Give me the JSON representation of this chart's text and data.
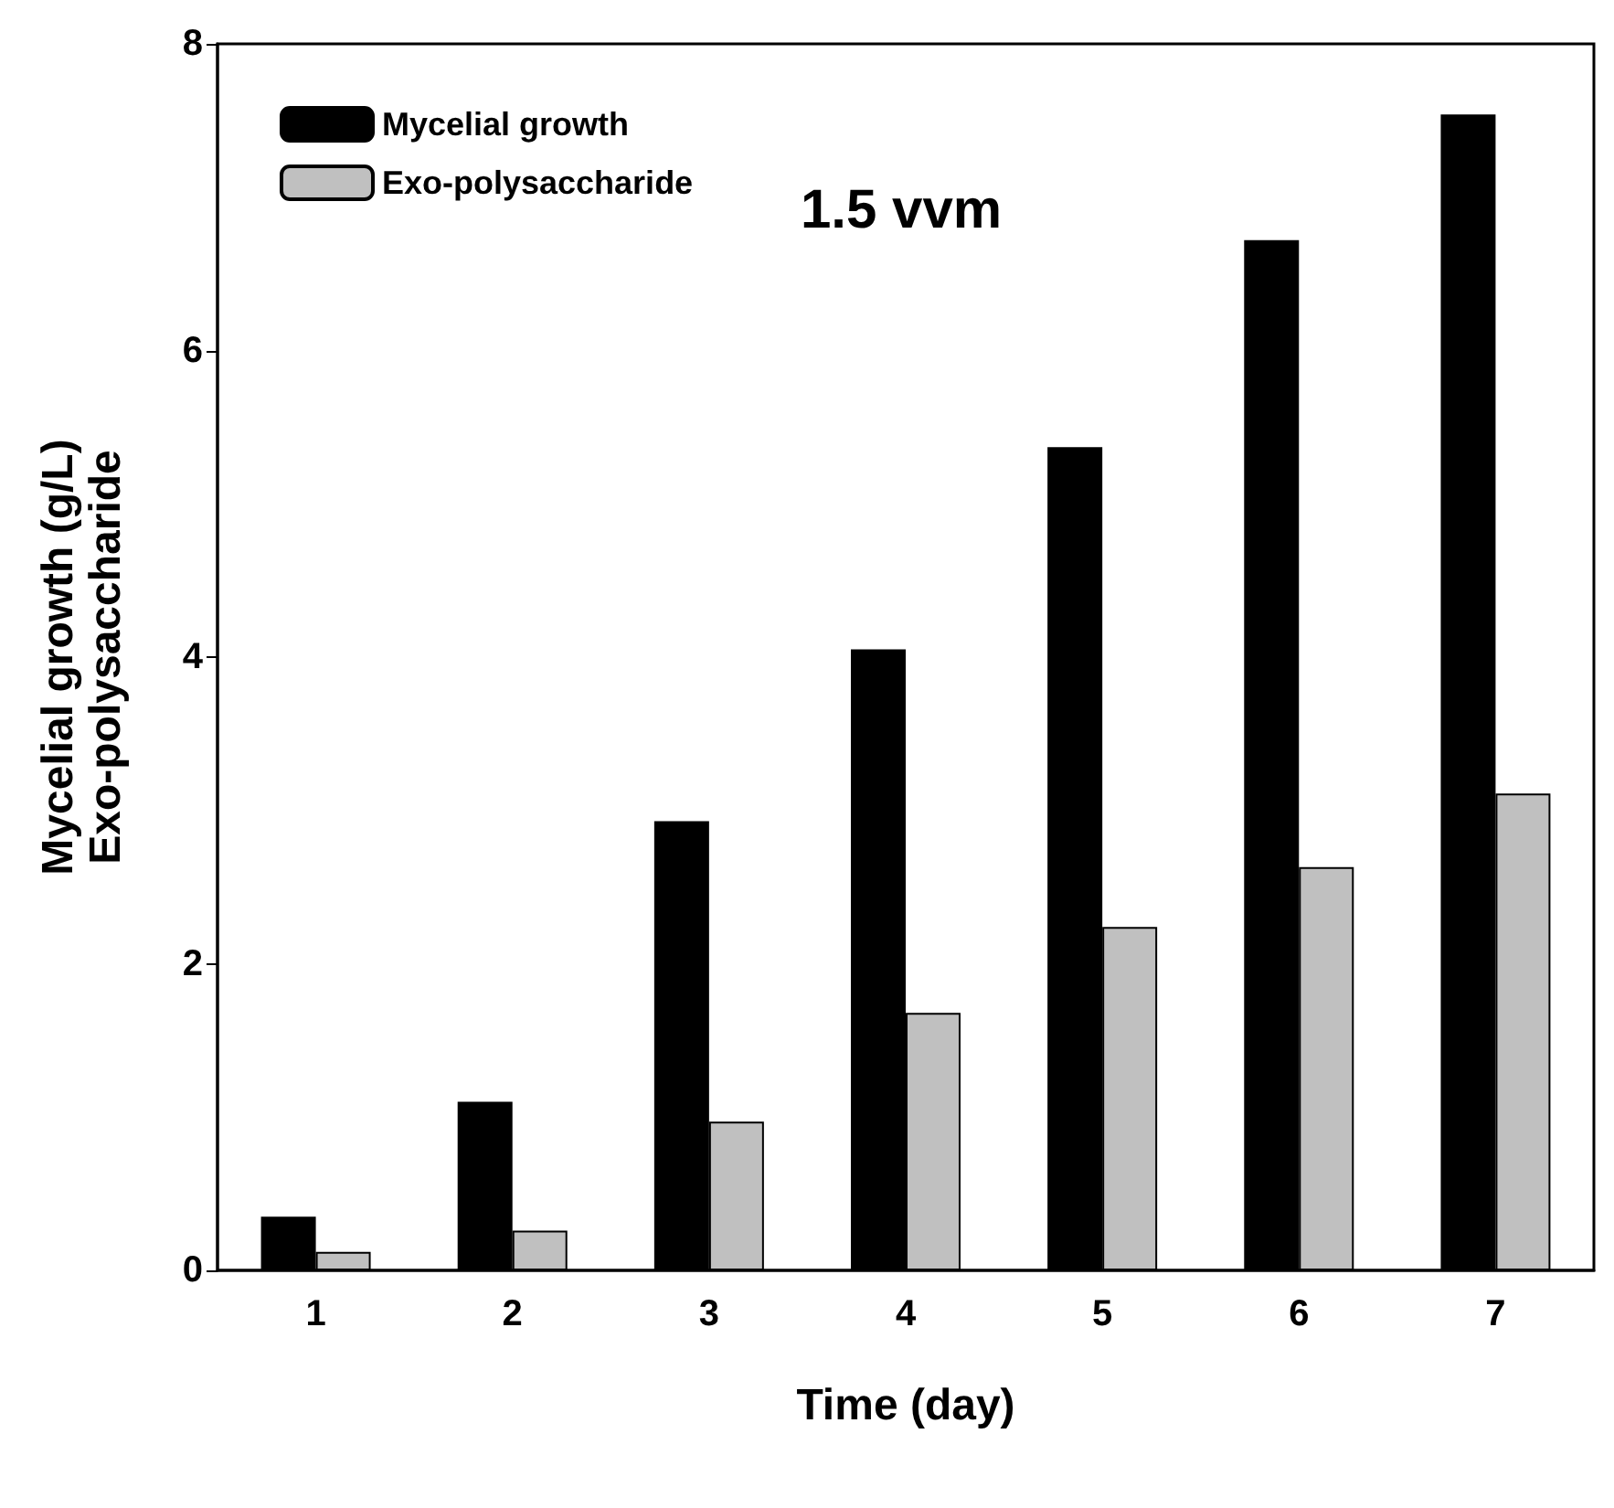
{
  "chart_data": {
    "type": "bar",
    "xlabel": "Time (day)",
    "ylabel": "Mycelial growth (g/L)\nExo-polysaccharide",
    "annotations": [
      "1.5 vvm"
    ],
    "categories": [
      "1",
      "2",
      "3",
      "4",
      "5",
      "6",
      "7"
    ],
    "series": [
      {
        "name": "Mycelial growth",
        "color": "#000000",
        "values": [
          0.35,
          1.1,
          2.93,
          4.05,
          5.37,
          6.72,
          7.54
        ]
      },
      {
        "name": "Exo-polysaccharide",
        "color": "#c0c0c0",
        "values": [
          0.12,
          0.26,
          0.97,
          1.68,
          2.24,
          2.63,
          3.11
        ]
      }
    ],
    "ylim": [
      0,
      8
    ],
    "yticks": [
      0,
      2,
      4,
      6,
      8
    ],
    "grid": false,
    "legend": "top left"
  }
}
